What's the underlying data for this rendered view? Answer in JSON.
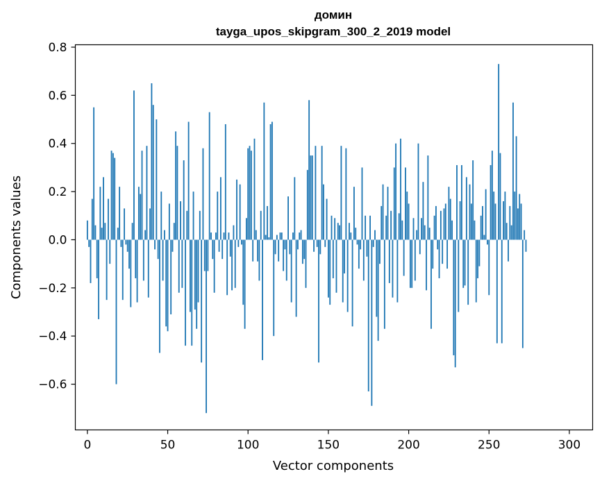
{
  "chart_data": {
    "type": "bar",
    "title": "домин",
    "subtitle": "tayga_upos_skipgram_300_2_2019 model",
    "xlabel": "Vector components",
    "ylabel": "Components values",
    "xlim": [
      -7.5,
      314.5
    ],
    "ylim": [
      -0.79,
      0.81
    ],
    "xticks": [
      0,
      50,
      100,
      150,
      200,
      250,
      300
    ],
    "yticks": [
      -0.6,
      -0.4,
      -0.2,
      0.0,
      0.2,
      0.4,
      0.6,
      0.8
    ],
    "ytick_labels": [
      "−0.6",
      "−0.4",
      "−0.2",
      "0.0",
      "0.2",
      "0.4",
      "0.6",
      "0.8"
    ],
    "grid": false,
    "bar_color": "#1f77b4",
    "values": [
      0.08,
      -0.03,
      -0.18,
      0.17,
      0.55,
      0.06,
      -0.16,
      -0.33,
      0.22,
      0.05,
      0.26,
      0.07,
      -0.25,
      0.17,
      -0.1,
      0.37,
      0.36,
      0.34,
      -0.6,
      0.05,
      0.22,
      -0.03,
      -0.25,
      0.13,
      -0.02,
      -0.05,
      -0.12,
      -0.28,
      0.07,
      0.62,
      -0.16,
      -0.26,
      0.22,
      0.19,
      0.37,
      -0.17,
      0.04,
      0.39,
      -0.24,
      0.13,
      0.65,
      0.56,
      -0.04,
      0.5,
      -0.08,
      -0.47,
      0.2,
      -0.17,
      0.04,
      -0.36,
      -0.38,
      0.15,
      -0.31,
      -0.05,
      0.07,
      0.45,
      0.39,
      -0.22,
      0.16,
      -0.2,
      0.33,
      -0.44,
      0.12,
      0.49,
      -0.3,
      -0.44,
      0.2,
      -0.29,
      -0.37,
      -0.26,
      0.12,
      -0.51,
      0.38,
      -0.13,
      -0.72,
      -0.13,
      0.53,
      0.03,
      -0.08,
      -0.22,
      0.03,
      0.2,
      -0.05,
      0.26,
      -0.08,
      0.03,
      0.48,
      -0.23,
      0.03,
      -0.07,
      -0.21,
      0.06,
      -0.2,
      0.25,
      -0.03,
      0.23,
      -0.02,
      -0.27,
      -0.37,
      0.09,
      0.38,
      0.39,
      0.37,
      -0.09,
      0.42,
      0.04,
      -0.09,
      -0.17,
      0.12,
      -0.5,
      0.57,
      0.02,
      0.14,
      0.01,
      0.48,
      0.49,
      -0.4,
      -0.06,
      0.02,
      -0.09,
      0.03,
      0.03,
      -0.13,
      -0.04,
      -0.17,
      0.18,
      -0.06,
      -0.26,
      0.03,
      0.26,
      -0.32,
      -0.04,
      0.03,
      0.04,
      -0.1,
      -0.08,
      -0.2,
      0.29,
      0.58,
      0.35,
      0.35,
      -0.05,
      0.39,
      -0.03,
      -0.51,
      -0.06,
      0.39,
      0.23,
      -0.03,
      0.17,
      -0.24,
      -0.27,
      0.1,
      -0.16,
      0.09,
      -0.22,
      0.07,
      0.06,
      0.39,
      -0.26,
      -0.14,
      0.38,
      -0.3,
      0.07,
      0.03,
      -0.36,
      0.22,
      0.05,
      -0.02,
      -0.12,
      -0.04,
      0.3,
      -0.17,
      0.1,
      -0.07,
      -0.63,
      0.1,
      -0.69,
      -0.03,
      0.04,
      -0.32,
      -0.42,
      -0.1,
      0.14,
      0.23,
      -0.37,
      0.1,
      0.22,
      -0.18,
      0.12,
      -0.24,
      0.3,
      0.4,
      -0.26,
      0.11,
      0.42,
      0.08,
      -0.15,
      0.3,
      0.2,
      0.15,
      -0.2,
      -0.2,
      0.09,
      -0.17,
      0.04,
      0.4,
      -0.06,
      0.09,
      0.24,
      0.06,
      -0.21,
      0.35,
      0.05,
      -0.37,
      -0.12,
      0.1,
      0.14,
      -0.04,
      -0.16,
      0.12,
      -0.1,
      0.13,
      0.15,
      -0.12,
      0.22,
      0.17,
      0.08,
      -0.48,
      -0.53,
      0.31,
      -0.3,
      0.16,
      0.31,
      -0.2,
      -0.19,
      0.26,
      -0.27,
      0.23,
      0.15,
      0.33,
      0.08,
      -0.26,
      -0.16,
      -0.11,
      0.1,
      0.14,
      0.02,
      0.21,
      -0.02,
      -0.23,
      0.31,
      0.37,
      0.2,
      0.15,
      -0.43,
      0.73,
      0.36,
      -0.43,
      0.16,
      0.2,
      0.07,
      -0.09,
      0.14,
      0.06,
      0.57,
      0.2,
      0.43,
      0.13,
      0.19,
      0.15,
      -0.45,
      0.04,
      -0.05
    ]
  }
}
